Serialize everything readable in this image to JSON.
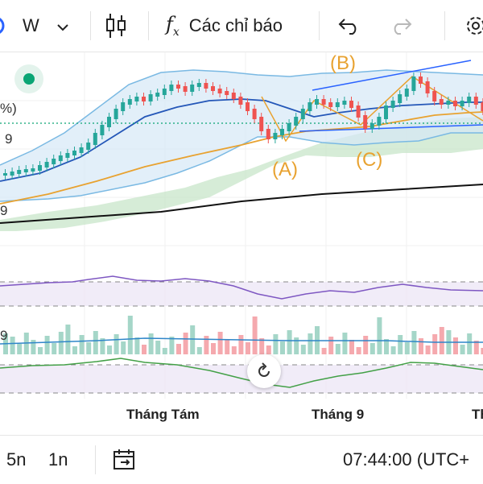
{
  "toolbar": {
    "interval": "W",
    "indicators_label": "Các chỉ báo"
  },
  "left_edge_labels": {
    "percent": "%)",
    "price_a": "9",
    "price_b": "9",
    "volume": "9"
  },
  "waves": {
    "a": "(A)",
    "b": "(B)",
    "c": "(C)"
  },
  "x_axis": {
    "label_1": "Tháng Tám",
    "label_2": "Tháng 9",
    "label_3": "Th"
  },
  "bottom_bar": {
    "range_1": "5n",
    "range_2": "1n",
    "time": "07:44:00 (UTC+"
  },
  "colors": {
    "up": "#26a69a",
    "down": "#ef5350",
    "accent": "#1e88e5",
    "wave": "#e8a230",
    "status": "#0aa574"
  },
  "icons": [
    "candles-icon",
    "fx-icon",
    "undo-icon",
    "redo-icon",
    "gear-icon",
    "calendar-range-icon",
    "reset-icon",
    "chevron-down-icon"
  ]
}
